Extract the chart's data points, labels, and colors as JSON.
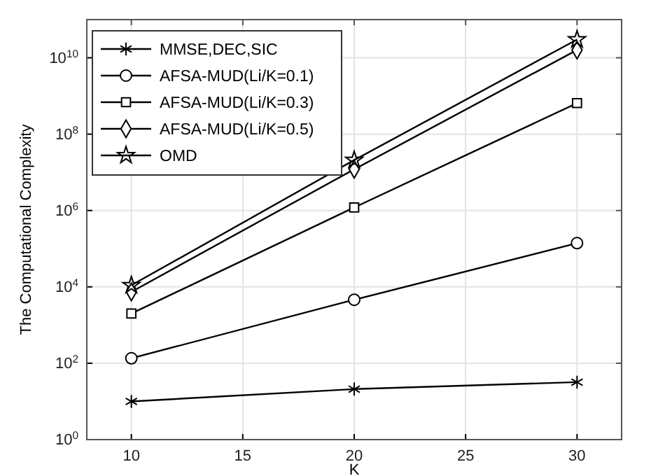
{
  "chart_data": {
    "type": "line",
    "xlabel": "K",
    "ylabel": "The Computational Complexity",
    "x": [
      10,
      20,
      30
    ],
    "series": [
      {
        "name": "MMSE,DEC,SIC",
        "color": "#000000",
        "marker": "cross",
        "values": [
          10,
          21,
          32
        ]
      },
      {
        "name": "AFSA-MUD(Li/K=0.1)",
        "color": "#000000",
        "marker": "circle",
        "values": [
          135,
          4600,
          140000
        ]
      },
      {
        "name": "AFSA-MUD(Li/K=0.3)",
        "color": "#000000",
        "marker": "square",
        "values": [
          2000,
          1200000,
          650000000
        ]
      },
      {
        "name": "AFSA-MUD(Li/K=0.5)",
        "color": "#000000",
        "marker": "diamond",
        "values": [
          7400,
          12000000,
          16000000000
        ]
      },
      {
        "name": "OMD",
        "color": "#000000",
        "marker": "star",
        "values": [
          11000,
          21000000,
          30000000000
        ]
      }
    ],
    "log": true,
    "xlim": [
      8,
      32
    ],
    "xticks": [
      10,
      15,
      20,
      25,
      30
    ],
    "ylim": [
      1,
      100000000000
    ],
    "yticks": [
      {
        "value": 1,
        "label": "10$^{0}$"
      },
      {
        "value": 100,
        "label": "10$^{2}$"
      },
      {
        "value": 10000,
        "label": "10$^{4}$"
      },
      {
        "value": 1000000,
        "label": "10$^{6}$"
      },
      {
        "value": 100000000,
        "label": "10$^{8}$"
      },
      {
        "value": 10000000000,
        "label": "10$^{10}$"
      }
    ],
    "grid": true,
    "legend": "top left",
    "line_style": "solid"
  }
}
